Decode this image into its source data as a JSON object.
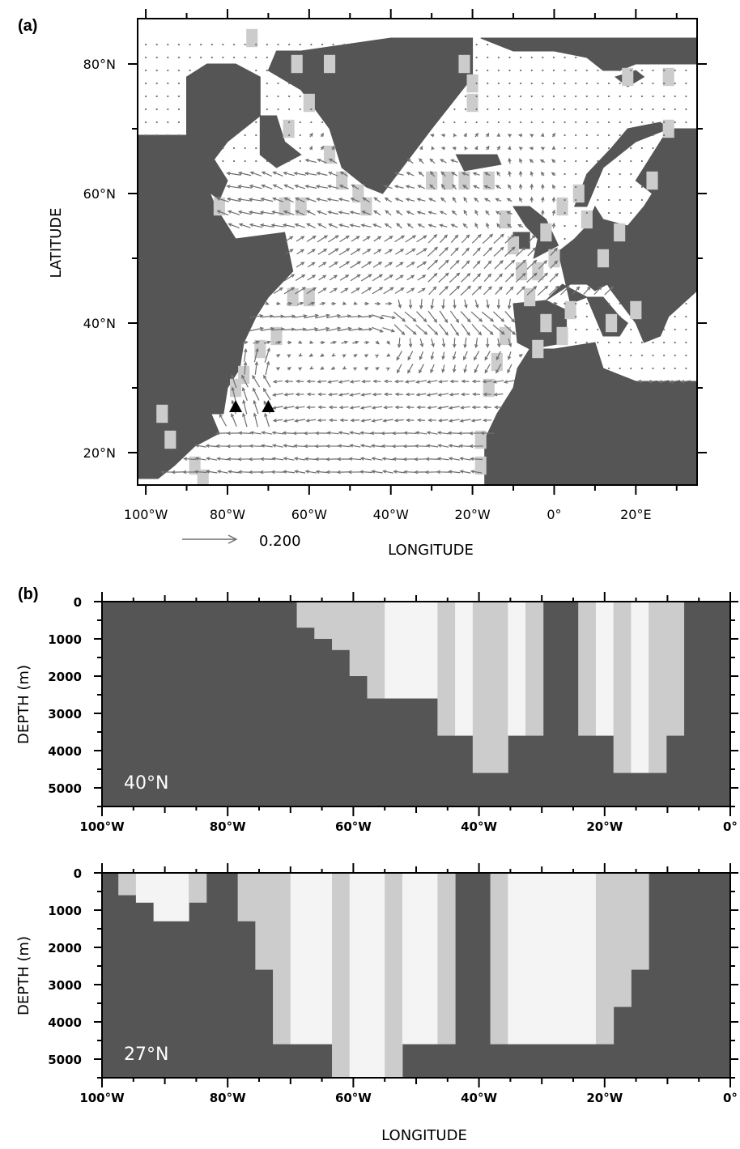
{
  "colors": {
    "land": "#555555",
    "ocean": "#ffffff",
    "coast": "#cccccc",
    "section_ocean": "#f4f4f4",
    "vector": "#6e6e6e",
    "marker": "#000000"
  },
  "chart_data": [
    {
      "panel": "(a)",
      "type": "vector-map",
      "xlabel": "LONGITUDE",
      "ylabel": "LATITUDE",
      "xlim": [
        -102,
        35
      ],
      "ylim": [
        15,
        87
      ],
      "x_ticks": [
        -100,
        -80,
        -60,
        -40,
        -20,
        0,
        20
      ],
      "x_tick_labels": [
        "100°W",
        "80°W",
        "60°W",
        "40°W",
        "20°W",
        "0°",
        "20°E"
      ],
      "y_ticks": [
        20,
        40,
        60,
        80
      ],
      "y_tick_labels": [
        "20°N",
        "40°N",
        "60°N",
        "80°N"
      ],
      "reference_vector": {
        "label": "0.200",
        "magnitude": 0.2
      },
      "markers": [
        {
          "symbol": "triangle",
          "lon": -78,
          "lat": 27
        },
        {
          "symbol": "triangle",
          "lon": -70,
          "lat": 27
        }
      ]
    },
    {
      "panel": "(b)",
      "type": "section",
      "latitude_label": "40°N",
      "latitude": 40,
      "ylabel": "DEPTH (m)",
      "xlim": [
        -100,
        0
      ],
      "ylim": [
        5500,
        0
      ],
      "x_ticks": [
        -100,
        -80,
        -60,
        -40,
        -20,
        0
      ],
      "x_tick_labels": [
        "100°W",
        "80°W",
        "60°W",
        "40°W",
        "20°W",
        "0°"
      ],
      "y_ticks": [
        0,
        1000,
        2000,
        3000,
        4000,
        5000
      ],
      "y_tick_labels": [
        "0",
        "1000",
        "2000",
        "3000",
        "4000",
        "5000"
      ],
      "column_width_deg": 2.8,
      "ocean_columns": [
        {
          "lon_start": -69,
          "lon_end": -66.2,
          "bottom": 700,
          "coast": true
        },
        {
          "lon_start": -66.2,
          "lon_end": -63.4,
          "bottom": 1000,
          "coast": true
        },
        {
          "lon_start": -63.4,
          "lon_end": -60.6,
          "bottom": 1300,
          "coast": true
        },
        {
          "lon_start": -60.6,
          "lon_end": -57.8,
          "bottom": 2000,
          "coast": true
        },
        {
          "lon_start": -57.8,
          "lon_end": -55,
          "bottom": 2600,
          "coast": true
        },
        {
          "lon_start": -55,
          "lon_end": -46.6,
          "bottom": 2600,
          "coast": false
        },
        {
          "lon_start": -46.6,
          "lon_end": -43.8,
          "bottom": 3600,
          "coast": true
        },
        {
          "lon_start": -43.8,
          "lon_end": -41,
          "bottom": 3600,
          "coast": false
        },
        {
          "lon_start": -41,
          "lon_end": -35.4,
          "bottom": 4600,
          "coast": true
        },
        {
          "lon_start": -35.4,
          "lon_end": -32.6,
          "bottom": 3600,
          "coast": false
        },
        {
          "lon_start": -32.6,
          "lon_end": -29.8,
          "bottom": 3600,
          "coast": true
        },
        {
          "lon_start": -24.2,
          "lon_end": -21.4,
          "bottom": 3600,
          "coast": true
        },
        {
          "lon_start": -21.4,
          "lon_end": -18.6,
          "bottom": 3600,
          "coast": false
        },
        {
          "lon_start": -18.6,
          "lon_end": -15.8,
          "bottom": 4600,
          "coast": true
        },
        {
          "lon_start": -15.8,
          "lon_end": -13,
          "bottom": 4600,
          "coast": false
        },
        {
          "lon_start": -13,
          "lon_end": -10.2,
          "bottom": 4600,
          "coast": true
        },
        {
          "lon_start": -10.2,
          "lon_end": -7.4,
          "bottom": 3600,
          "coast": true
        }
      ]
    },
    {
      "panel": "(b)",
      "type": "section",
      "latitude_label": "27°N",
      "latitude": 27,
      "xlabel": "LONGITUDE",
      "ylabel": "DEPTH (m)",
      "xlim": [
        -100,
        0
      ],
      "ylim": [
        5500,
        0
      ],
      "x_ticks": [
        -100,
        -80,
        -60,
        -40,
        -20,
        0
      ],
      "x_tick_labels": [
        "100°W",
        "80°W",
        "60°W",
        "40°W",
        "20°W",
        "0°"
      ],
      "y_ticks": [
        0,
        1000,
        2000,
        3000,
        4000,
        5000
      ],
      "y_tick_labels": [
        "0",
        "1000",
        "2000",
        "3000",
        "4000",
        "5000"
      ],
      "column_width_deg": 2.8,
      "ocean_columns": [
        {
          "lon_start": -97.4,
          "lon_end": -94.6,
          "bottom": 600,
          "coast": true
        },
        {
          "lon_start": -94.6,
          "lon_end": -91.8,
          "bottom": 800,
          "coast": false
        },
        {
          "lon_start": -91.8,
          "lon_end": -86.2,
          "bottom": 1300,
          "coast": false
        },
        {
          "lon_start": -86.2,
          "lon_end": -83.4,
          "bottom": 800,
          "coast": true
        },
        {
          "lon_start": -78.4,
          "lon_end": -75.6,
          "bottom": 1300,
          "coast": true
        },
        {
          "lon_start": -75.6,
          "lon_end": -72.8,
          "bottom": 2600,
          "coast": true
        },
        {
          "lon_start": -72.8,
          "lon_end": -70,
          "bottom": 4600,
          "coast": true
        },
        {
          "lon_start": -70,
          "lon_end": -63.4,
          "bottom": 4600,
          "coast": false
        },
        {
          "lon_start": -63.4,
          "lon_end": -60.6,
          "bottom": 5500,
          "coast": true
        },
        {
          "lon_start": -60.6,
          "lon_end": -55,
          "bottom": 5500,
          "coast": false
        },
        {
          "lon_start": -55,
          "lon_end": -52.2,
          "bottom": 5500,
          "coast": true
        },
        {
          "lon_start": -52.2,
          "lon_end": -46.6,
          "bottom": 4600,
          "coast": false
        },
        {
          "lon_start": -46.6,
          "lon_end": -43.8,
          "bottom": 4600,
          "coast": true
        },
        {
          "lon_start": -38.2,
          "lon_end": -35.4,
          "bottom": 4600,
          "coast": true
        },
        {
          "lon_start": -35.4,
          "lon_end": -21.4,
          "bottom": 4600,
          "coast": false
        },
        {
          "lon_start": -21.4,
          "lon_end": -18.6,
          "bottom": 4600,
          "coast": true
        },
        {
          "lon_start": -18.6,
          "lon_end": -15.8,
          "bottom": 3600,
          "coast": true
        },
        {
          "lon_start": -15.8,
          "lon_end": -13,
          "bottom": 2600,
          "coast": true
        }
      ]
    }
  ]
}
